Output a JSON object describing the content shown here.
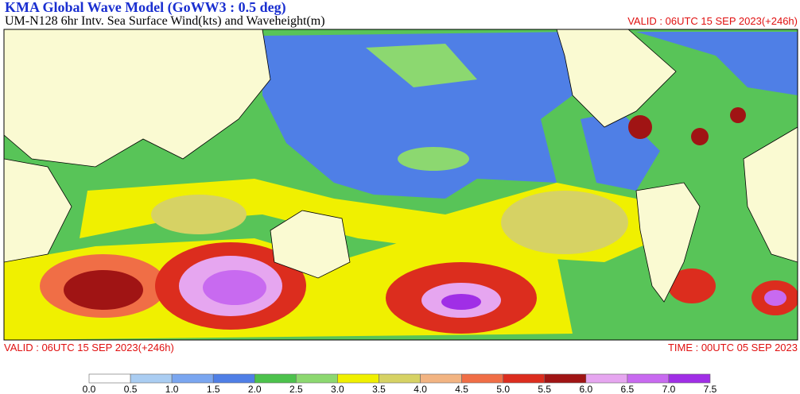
{
  "header": {
    "title": "KMA  Global Wave Model (GoWW3 : 0.5 deg)",
    "subtitle": "UM-N128  6hr Intv. Sea Surface Wind(kts) and Waveheight(m)",
    "valid": "VALID : 06UTC 15 SEP 2023(+246h)"
  },
  "footer": {
    "valid": "VALID : 06UTC 15 SEP 2023(+246h)",
    "time": "TIME : 00UTC 05 SEP 2023"
  },
  "colorbar": {
    "labels": [
      "0.0",
      "0.5",
      "1.0",
      "1.5",
      "2.0",
      "2.5",
      "3.0",
      "3.5",
      "4.0",
      "4.5",
      "5.0",
      "5.5",
      "6.0",
      "6.5",
      "7.0",
      "7.5"
    ],
    "colors": [
      "#ffffff",
      "#aacdf2",
      "#7aa6f0",
      "#4f7fe6",
      "#4cc24c",
      "#8cd870",
      "#f0f000",
      "#d6d264",
      "#f2b482",
      "#f06e46",
      "#dc2d1e",
      "#a01414",
      "#e6a6f0",
      "#c86af0",
      "#a02ee6"
    ]
  }
}
